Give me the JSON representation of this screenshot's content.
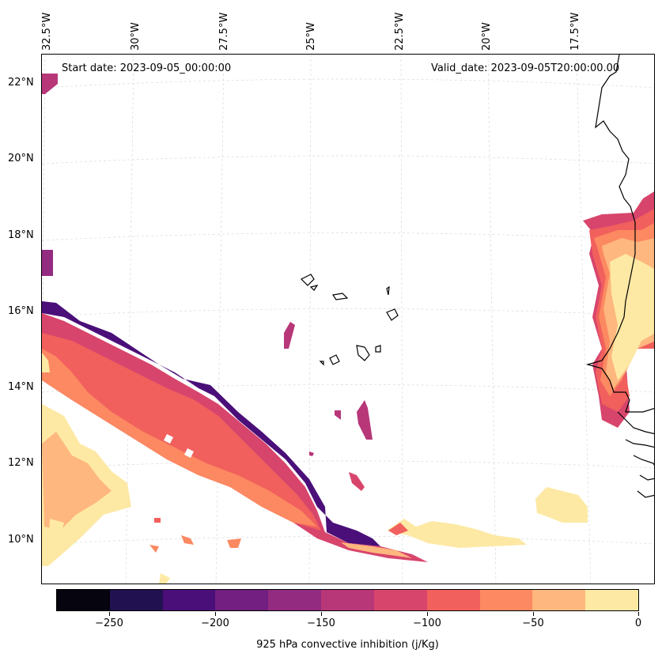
{
  "map": {
    "start_date": "Start date: 2023-09-05_00:00:00",
    "valid_date": "Valid_date: 2023-09-05T20:00:00.00",
    "lon_labels": [
      "32.5°W",
      "30°W",
      "27.5°W",
      "25°W",
      "22.5°W",
      "20°W",
      "17.5°W"
    ],
    "lat_labels": [
      "22°N",
      "20°N",
      "18°N",
      "16°N",
      "14°N",
      "12°N",
      "10°N"
    ]
  },
  "colorbar": {
    "label": "925 hPa convective inhibition (j/Kg)",
    "ticks": [
      "−250",
      "−200",
      "−150",
      "−100",
      "−50",
      "0"
    ],
    "colors": [
      "#05040f",
      "#221150",
      "#4a0f78",
      "#721f81",
      "#932b80",
      "#b73779",
      "#d8456c",
      "#f1605d",
      "#fc8961",
      "#feb77e",
      "#fde9a4"
    ],
    "range": [
      -275,
      0
    ]
  },
  "legend_colors": {
    "c1": "#fde9a4",
    "c2": "#feb77e",
    "c3": "#fc8961",
    "c4": "#f1605d",
    "c5": "#d8456c",
    "c6": "#b73779",
    "c7": "#932b80",
    "c8": "#721f81",
    "c9": "#4a0f78"
  }
}
